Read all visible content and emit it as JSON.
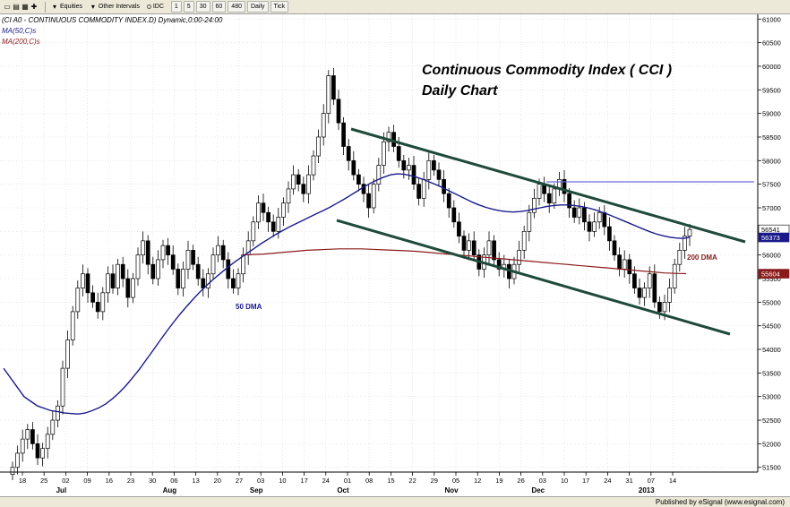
{
  "toolbar": {
    "equities_label": "Equities",
    "intervals_label": "Other Intervals",
    "source_label": "IDC",
    "buttons": [
      "1",
      "5",
      "30",
      "60",
      "480",
      "Daily",
      "Tick"
    ]
  },
  "header": {
    "symbol_line": "(CI A0 - CONTINUOUS COMMODITY INDEX.D) Dynamic,0:00-24:00",
    "ma50_line": "MA(50,C)s",
    "ma200_line": "MA(200,C)s"
  },
  "annotations": {
    "title_line1": "Continuous Commodity Index ( CCI )",
    "title_line2": "Daily Chart",
    "label_50dma": "50 DMA",
    "label_200dma": "200 DMA"
  },
  "footer": {
    "published": "Published by eSignal (www.esignal.com)"
  },
  "colors": {
    "up": "#000000",
    "down": "#000000",
    "ma50": "#1a1a8c",
    "ma200": "#8b1a1a",
    "channel": "#1f4a3a",
    "resistance": "#6a6ae0"
  },
  "chart_data": {
    "type": "candlestick",
    "ylim": [
      51400,
      61100
    ],
    "y_ticks": [
      51500,
      52000,
      52500,
      53000,
      53500,
      54000,
      54500,
      55000,
      55500,
      56000,
      56500,
      57000,
      57500,
      58000,
      58500,
      59000,
      59500,
      60000,
      60500,
      61000
    ],
    "x_ticks": [
      "18",
      "25",
      "02",
      "09",
      "16",
      "23",
      "30",
      "06",
      "13",
      "20",
      "27",
      "03",
      "10",
      "17",
      "24",
      "01",
      "08",
      "15",
      "22",
      "29",
      "05",
      "12",
      "19",
      "26",
      "03",
      "10",
      "17",
      "24",
      "31",
      "07",
      "14"
    ],
    "month_labels": [
      "Jul",
      "Aug",
      "Sep",
      "Oct",
      "Nov",
      "Dec",
      "2013"
    ],
    "last_price_label": "56541",
    "ma50_label": "56373",
    "ma200_label": "55604",
    "closes": [
      51500,
      51800,
      52100,
      52300,
      52000,
      51700,
      51900,
      52200,
      52500,
      52800,
      53600,
      54200,
      54800,
      55300,
      55600,
      55200,
      55000,
      54800,
      55200,
      55600,
      55300,
      55800,
      55500,
      55100,
      55500,
      56000,
      56300,
      55800,
      55500,
      55900,
      56200,
      56000,
      55700,
      55300,
      55700,
      56100,
      55800,
      55500,
      55300,
      55600,
      56000,
      56200,
      55900,
      55500,
      55300,
      55600,
      56000,
      56300,
      56700,
      57100,
      56900,
      56700,
      56500,
      56800,
      57100,
      57400,
      57700,
      57500,
      57300,
      57700,
      58100,
      58500,
      59000,
      59800,
      59300,
      58800,
      58300,
      58000,
      57700,
      57500,
      57300,
      57000,
      57500,
      57900,
      58400,
      58600,
      58300,
      58000,
      57800,
      57900,
      57500,
      57200,
      57600,
      58000,
      57800,
      57600,
      57300,
      57000,
      56700,
      56400,
      56100,
      56300,
      56000,
      55700,
      56000,
      56300,
      55900,
      55700,
      55800,
      55500,
      55800,
      56100,
      56500,
      56900,
      57200,
      57500,
      57300,
      57100,
      57400,
      57600,
      57300,
      57000,
      56800,
      57000,
      56700,
      56500,
      56700,
      56900,
      56600,
      56300,
      56000,
      55700,
      55900,
      55600,
      55300,
      55100,
      55300,
      55600,
      55000,
      54800,
      55000,
      55300,
      55800,
      56100,
      56400,
      56541
    ],
    "ma50": [
      53600,
      53400,
      53200,
      53000,
      52900,
      52800,
      52750,
      52700,
      52680,
      52650,
      52640,
      52630,
      52650,
      52700,
      52760,
      52840,
      52950,
      53080,
      53230,
      53400,
      53580,
      53780,
      53980,
      54180,
      54380,
      54570,
      54750,
      54920,
      55080,
      55230,
      55370,
      55500,
      55620,
      55740,
      55850,
      55950,
      56050,
      56150,
      56250,
      56340,
      56430,
      56510,
      56590,
      56660,
      56730,
      56800,
      56870,
      56940,
      57010,
      57090,
      57170,
      57260,
      57350,
      57440,
      57520,
      57590,
      57650,
      57700,
      57720,
      57710,
      57680,
      57640,
      57590,
      57530,
      57470,
      57400,
      57330,
      57260,
      57190,
      57120,
      57060,
      57010,
      56970,
      56940,
      56920,
      56910,
      56920,
      56940,
      56970,
      57000,
      57030,
      57050,
      57060,
      57060,
      57050,
      57030,
      57000,
      56960,
      56910,
      56860,
      56800,
      56740,
      56680,
      56620,
      56560,
      56500,
      56450,
      56410,
      56380,
      56360,
      56350,
      56373
    ],
    "ma200": [
      null,
      null,
      null,
      null,
      null,
      null,
      null,
      null,
      null,
      null,
      null,
      null,
      null,
      null,
      null,
      null,
      null,
      null,
      null,
      null,
      null,
      null,
      null,
      null,
      null,
      null,
      null,
      null,
      null,
      null,
      null,
      null,
      null,
      null,
      null,
      null,
      null,
      null,
      null,
      null,
      null,
      null,
      null,
      null,
      null,
      null,
      null,
      null,
      null,
      null,
      56000,
      56010,
      56020,
      56040,
      56060,
      56080,
      56100,
      56110,
      56120,
      56130,
      56130,
      56130,
      56120,
      56110,
      56100,
      56090,
      56080,
      56060,
      56040,
      56020,
      56000,
      55980,
      55960,
      55940,
      55920,
      55900,
      55880,
      55860,
      55840,
      55820,
      55800,
      55780,
      55760,
      55740,
      55720,
      55700,
      55680,
      55660,
      55640,
      55620,
      55610,
      55604
    ]
  }
}
